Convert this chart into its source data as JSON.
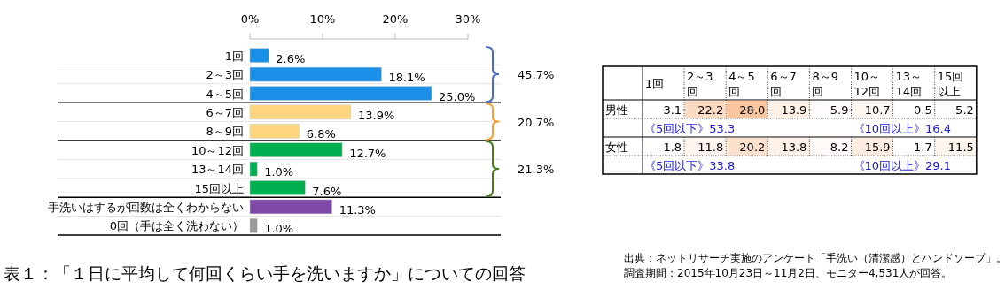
{
  "chart_data": [
    {
      "type": "bar",
      "orientation": "horizontal",
      "title": "表１：「１日に平均して何回くらい手を洗いますか」についての回答",
      "categories": [
        "1回",
        "2～3回",
        "4～5回",
        "6～7回",
        "8～9回",
        "10～12回",
        "13～14回",
        "15回以上",
        "手洗いはするが回数は全くわからない",
        "0回（手は全く洗わない）"
      ],
      "values": [
        2.6,
        18.1,
        25.0,
        13.9,
        6.8,
        12.7,
        1.0,
        7.6,
        11.3,
        1.0
      ],
      "colors": [
        "#1a8fe8",
        "#1a8fe8",
        "#1a8fe8",
        "#fdd57e",
        "#fdd57e",
        "#00b050",
        "#00b050",
        "#00b050",
        "#7f49a8",
        "#999999"
      ],
      "value_labels": [
        "2.6%",
        "18.1%",
        "25.0%",
        "13.9%",
        "6.8%",
        "12.7%",
        "1.0%",
        "7.6%",
        "11.3%",
        "1.0%"
      ],
      "xlim": [
        0,
        30
      ],
      "xticks": [
        {
          "value": 0,
          "label": "0%"
        },
        {
          "value": 10,
          "label": "10%"
        },
        {
          "value": 20,
          "label": "20%"
        },
        {
          "value": 30,
          "label": "30%"
        }
      ],
      "annotations": [
        "45.7%",
        "20.7%",
        "21.3%",
        "出典：ネットリサーチ実施のアンケート「手洗い（清潔感）とハンドソープ」。",
        "調査期間：2015年10月23日～11月2日、モニター4,531人が回答。"
      ]
    },
    {
      "type": "heatmap",
      "categories": [
        "1回",
        "2～3回",
        "4～5回",
        "6～7回",
        "8～9回",
        "10～12回",
        "13～14回",
        "15回以上"
      ],
      "y_categories": [
        "男性",
        "女性"
      ],
      "cells": [
        [
          3.1,
          22.2,
          28.0,
          13.9,
          5.9,
          10.7,
          0.5,
          5.2
        ],
        [
          1.8,
          11.8,
          20.2,
          13.8,
          8.2,
          15.9,
          1.7,
          11.5
        ]
      ],
      "cell_labels": [
        [
          "3.1",
          "22.2",
          "28.0",
          "13.9",
          "5.9",
          "10.7",
          "0.5",
          "5.2"
        ],
        [
          "1.8",
          "11.8",
          "20.2",
          "13.8",
          "8.2",
          "15.9",
          "1.7",
          "11.5"
        ]
      ],
      "annotations": [
        "《5回以下》53.3",
        "《10回以上》16.4",
        "《5回以下》33.8",
        "《10回以上》29.1"
      ]
    }
  ]
}
